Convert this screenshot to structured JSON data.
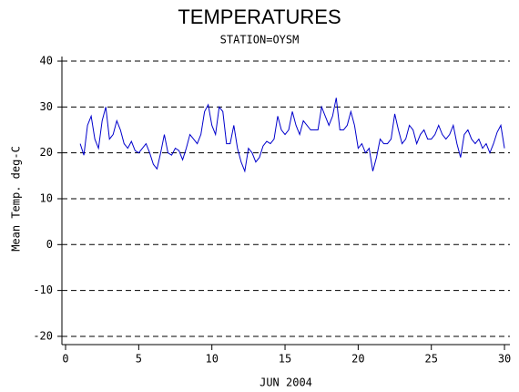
{
  "chart_data": {
    "type": "line",
    "title": "TEMPERATURES",
    "subtitle": "STATION=OYSM",
    "x_label": "JUN 2004",
    "y_label": "Mean Temp. deg-C",
    "xlim": [
      -0.25,
      30.37
    ],
    "xticks": [
      0,
      5,
      10,
      15,
      20,
      25,
      30
    ],
    "ylim": [
      -21.8,
      41
    ],
    "yticks": [
      -20,
      -10,
      0,
      10,
      20,
      30,
      40
    ],
    "grid": true,
    "series": [
      {
        "name": "Mean Temp",
        "color": "#0000cc",
        "x": [
          1.0,
          1.25,
          1.5,
          1.75,
          2.0,
          2.25,
          2.5,
          2.75,
          3.0,
          3.25,
          3.5,
          3.75,
          4.0,
          4.25,
          4.5,
          4.75,
          5.0,
          5.25,
          5.5,
          5.75,
          6.0,
          6.25,
          6.5,
          6.75,
          7.0,
          7.25,
          7.5,
          7.75,
          8.0,
          8.25,
          8.5,
          8.75,
          9.0,
          9.25,
          9.5,
          9.75,
          10.0,
          10.25,
          10.5,
          10.75,
          11.0,
          11.25,
          11.5,
          11.75,
          12.0,
          12.25,
          12.5,
          12.75,
          13.0,
          13.25,
          13.5,
          13.75,
          14.0,
          14.25,
          14.5,
          14.75,
          15.0,
          15.25,
          15.5,
          15.75,
          16.0,
          16.25,
          16.5,
          16.75,
          17.0,
          17.25,
          17.5,
          17.75,
          18.0,
          18.25,
          18.5,
          18.75,
          19.0,
          19.25,
          19.5,
          19.75,
          20.0,
          20.25,
          20.5,
          20.75,
          21.0,
          21.25,
          21.5,
          21.75,
          22.0,
          22.25,
          22.5,
          22.75,
          23.0,
          23.25,
          23.5,
          23.75,
          24.0,
          24.25,
          24.5,
          24.75,
          25.0,
          25.25,
          25.5,
          25.75,
          26.0,
          26.25,
          26.5,
          26.75,
          27.0,
          27.25,
          27.5,
          27.75,
          28.0,
          28.25,
          28.5,
          28.75,
          29.0,
          29.25,
          29.5,
          29.75,
          30.0
        ],
        "values": [
          22,
          19.5,
          26,
          28,
          23,
          21,
          27,
          30,
          23,
          24,
          27,
          25,
          22,
          21,
          22.5,
          20.5,
          20,
          21,
          22,
          20,
          17.5,
          16.5,
          20,
          24,
          20,
          19.5,
          21,
          20.5,
          18.5,
          21,
          24,
          23,
          22,
          24,
          29,
          30.5,
          26,
          24,
          30,
          29,
          22,
          22,
          26,
          21,
          18,
          16,
          21,
          20,
          18,
          19,
          21.5,
          22.5,
          22,
          23,
          28,
          25,
          24,
          25,
          29,
          26,
          24,
          27,
          26,
          25,
          25,
          25,
          30,
          28,
          26,
          28,
          32,
          25,
          25,
          26,
          29,
          26,
          21,
          22,
          20,
          21,
          16,
          19,
          23,
          22,
          22,
          23,
          28.5,
          25,
          22,
          23,
          26,
          25,
          22,
          24,
          25,
          23,
          23,
          24,
          26,
          24,
          23,
          24,
          26,
          22,
          19,
          24,
          25,
          23,
          22,
          23,
          21,
          22,
          20,
          22,
          24.5,
          26,
          21
        ]
      }
    ]
  }
}
